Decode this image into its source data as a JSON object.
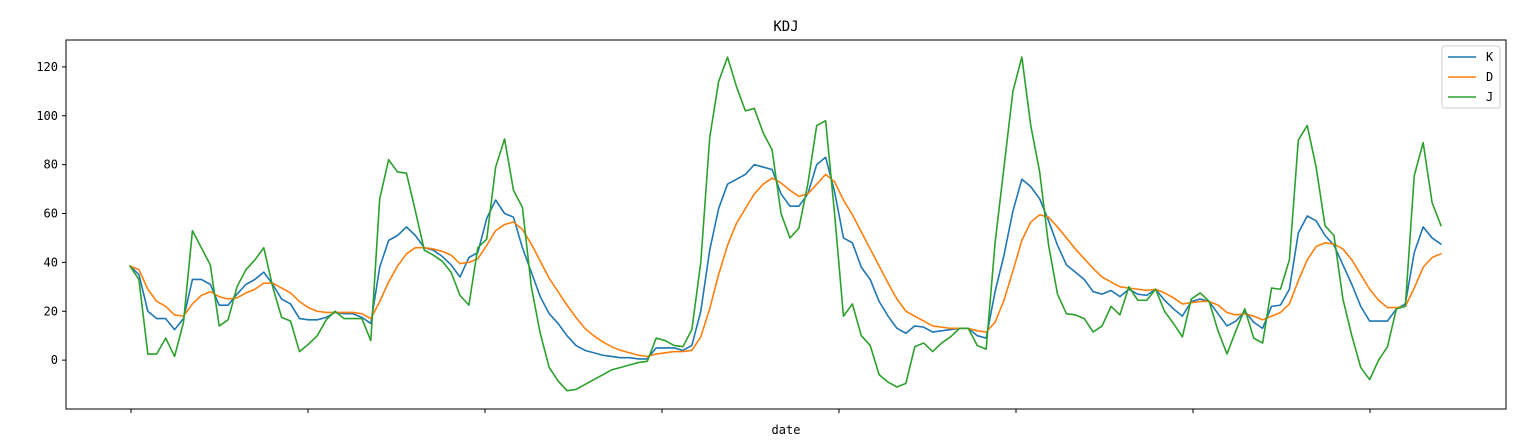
{
  "chart_data": {
    "type": "line",
    "title": "KDJ",
    "xlabel": "date",
    "ylabel": "",
    "ylim": [
      -20,
      131
    ],
    "y_ticks": [
      0,
      20,
      40,
      60,
      80,
      100,
      120
    ],
    "x_tick_count": 8,
    "grid": false,
    "legend_position": "top-right",
    "colors": {
      "K": "#1f77b4",
      "D": "#ff7f0e",
      "J": "#2ca02c"
    },
    "series": [
      {
        "name": "K",
        "values": [
          38.5,
          35,
          20,
          17,
          17,
          12.5,
          17,
          33,
          33,
          31,
          22.5,
          22.5,
          27,
          31,
          33,
          36,
          31,
          25,
          23,
          17,
          16.5,
          16.5,
          17.5,
          19.5,
          19,
          19,
          17.5,
          15,
          38,
          49,
          51,
          54.5,
          51,
          46,
          45,
          42.5,
          39,
          34,
          42,
          44,
          58,
          65.5,
          60,
          58.5,
          46,
          36,
          26,
          19,
          15,
          10,
          6,
          4,
          3,
          2,
          1.5,
          1,
          1,
          0.5,
          0.5,
          5,
          5,
          5,
          4,
          6,
          20,
          45,
          62,
          72,
          74,
          76,
          80,
          79,
          78,
          68,
          63,
          63,
          68,
          80,
          83,
          69,
          50,
          48,
          38,
          33,
          24,
          18,
          13,
          11,
          14,
          13.5,
          11.5,
          12,
          12.5,
          13,
          13,
          10,
          9,
          28,
          43,
          61,
          74,
          71,
          66,
          57,
          47,
          39,
          36,
          33,
          28,
          27,
          28.5,
          26,
          29,
          27,
          26.5,
          29,
          24.5,
          21,
          18,
          24,
          25,
          24,
          19,
          14,
          16,
          20,
          15.5,
          13,
          22,
          22.5,
          29,
          52,
          59,
          57,
          51,
          47,
          39,
          31,
          22,
          16,
          16,
          16,
          21,
          23,
          44,
          54.5,
          50,
          47.5
        ]
      },
      {
        "name": "D",
        "values": [
          38.5,
          37,
          29,
          24,
          22,
          18.5,
          18,
          23,
          26.5,
          28,
          26,
          25,
          25.5,
          27.5,
          29,
          31.5,
          31.5,
          29.5,
          27.5,
          24,
          21.5,
          20,
          19.5,
          19.5,
          19.5,
          19.5,
          19,
          17,
          24,
          32,
          38.5,
          43.5,
          46,
          46,
          45.5,
          44.5,
          43,
          39.5,
          40,
          41.5,
          47,
          53,
          55.5,
          56.5,
          53.5,
          47.5,
          40.5,
          33.5,
          28,
          22.5,
          17.5,
          13,
          10,
          7.5,
          5.5,
          4,
          3,
          2,
          1.5,
          2.5,
          3,
          3.5,
          3.5,
          4,
          9.5,
          21,
          35,
          47,
          56,
          62,
          68,
          72,
          74.5,
          72.5,
          69.5,
          67,
          68,
          72,
          76,
          73,
          65.5,
          59.5,
          52.5,
          45.5,
          38.5,
          31.5,
          25,
          20,
          18,
          16,
          14,
          13.5,
          13,
          13,
          13,
          12,
          11.5,
          15.5,
          24.5,
          36.5,
          49,
          56.5,
          59.5,
          58.5,
          54.5,
          50,
          45.5,
          41.5,
          37.5,
          34,
          32,
          30,
          29.5,
          29,
          28.5,
          29,
          27.5,
          25.5,
          23,
          23.5,
          24,
          24,
          22.5,
          19.5,
          18.5,
          19,
          18,
          16.5,
          18,
          19.5,
          23,
          32.5,
          41,
          46.5,
          48,
          47.5,
          45.5,
          41,
          35,
          29,
          24.5,
          21.5,
          21.5,
          22,
          29.5,
          38,
          42,
          43.5
        ]
      },
      {
        "name": "J",
        "values": [
          38.5,
          33,
          2.5,
          2.5,
          9,
          1.5,
          15.5,
          53,
          46,
          39,
          14,
          16.5,
          30,
          37,
          41,
          46,
          30,
          17.5,
          16,
          3.5,
          6.5,
          10,
          16.5,
          20,
          17,
          17,
          17,
          8,
          66,
          82,
          77,
          76.5,
          61,
          45,
          43,
          40.5,
          36,
          26.5,
          22.5,
          46,
          49.5,
          79,
          90.5,
          69.5,
          62.5,
          30,
          11,
          -3,
          -8.5,
          -12.5,
          -12,
          -10,
          -8,
          -6,
          -4,
          -3,
          -2,
          -1,
          -0.5,
          9,
          8,
          6,
          5.5,
          12.5,
          40,
          91,
          114,
          124,
          112,
          102,
          103,
          93,
          86,
          60,
          50,
          54,
          72,
          96,
          98,
          60,
          18,
          23,
          10,
          6,
          -6,
          -9,
          -11,
          -9.5,
          5.5,
          7,
          3.5,
          7,
          9.5,
          13,
          13,
          6,
          4.5,
          48,
          79,
          110,
          124,
          96,
          77,
          47,
          27,
          19,
          18.5,
          17,
          11.5,
          14,
          22,
          18.5,
          30,
          24.5,
          24.5,
          29,
          20,
          15,
          9.5,
          25,
          27.5,
          24,
          12,
          2.5,
          12,
          21,
          9,
          7,
          29.5,
          29,
          41,
          90,
          96,
          79,
          55,
          51,
          25,
          10,
          -3,
          -8,
          0,
          5.5,
          21,
          22,
          75.5,
          89,
          64.5,
          55
        ]
      }
    ]
  }
}
